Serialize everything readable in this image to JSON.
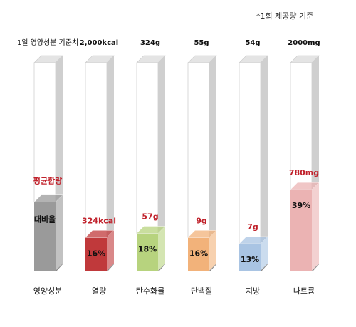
{
  "note": "*1회 제공량 기준",
  "chart_data": {
    "type": "bar",
    "legend_column": {
      "header": "1일 영양성분 기준치",
      "avg_label": "평균함량",
      "ratio_label": "대비율",
      "category": "영양성분",
      "percent": 33
    },
    "categories": [
      "열량",
      "탄수화물",
      "단백질",
      "지방",
      "나트륨"
    ],
    "daily_values": [
      "2,000kcal",
      "324g",
      "55g",
      "54g",
      "2000mg"
    ],
    "amounts": [
      "324kcal",
      "57g",
      "9g",
      "7g",
      "780mg"
    ],
    "percents": [
      16,
      18,
      16,
      13,
      39
    ],
    "percent_labels": [
      "16%",
      "18%",
      "16%",
      "13%",
      "39%"
    ],
    "ylim": [
      0,
      100
    ],
    "colors": {
      "legend": "#9a9a9a",
      "bars": [
        "#c0393b",
        "#b7d37e",
        "#f2b27a",
        "#a9c4e3",
        "#ebb3b3"
      ],
      "amount_text": "#c0202a",
      "empty": "#ffffff",
      "side": "#cfcfcf",
      "top": "#e4e4e4"
    }
  }
}
